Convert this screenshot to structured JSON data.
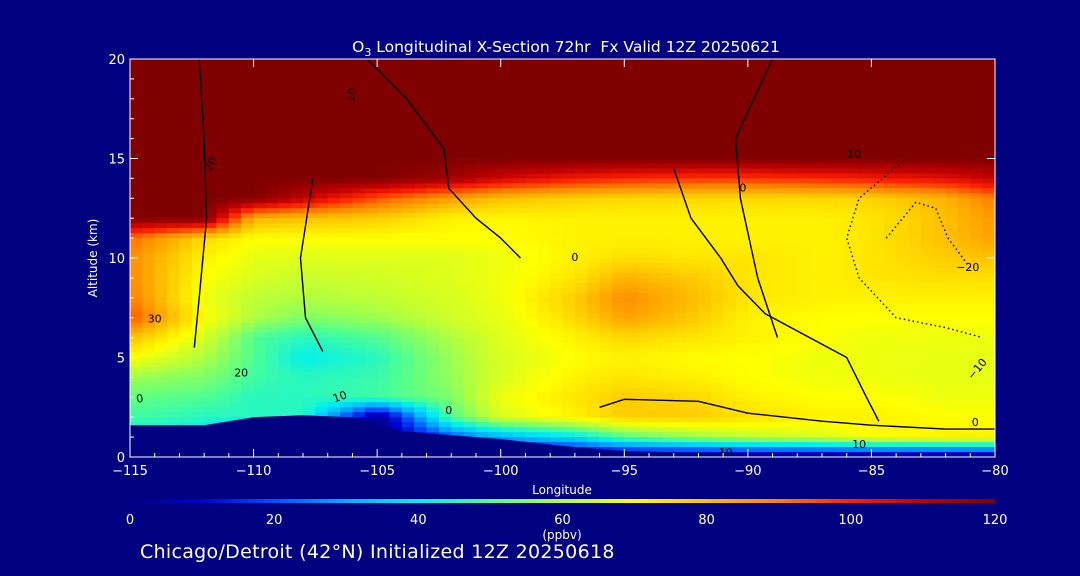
{
  "chart_data": {
    "type": "heatmap",
    "title": "O3 Longitudinal X-Section 72hr  Fx Valid 12Z 20250621",
    "title_parts": {
      "symbol": "O",
      "subscript": "3",
      "rest": " Longitudinal X-Section 72hr  Fx Valid 12Z 20250621"
    },
    "xlabel": "Longitude",
    "ylabel": "Altitude (km)",
    "xlim": [
      -115,
      -80
    ],
    "ylim": [
      0,
      20
    ],
    "x_ticks": [
      -115,
      -110,
      -105,
      -100,
      -95,
      -90,
      -85,
      -80
    ],
    "x_tick_labels": [
      "−115",
      "−110",
      "−105",
      "−100",
      "−95",
      "−90",
      "−85",
      "−80"
    ],
    "y_ticks": [
      0,
      5,
      10,
      15,
      20
    ],
    "y_tick_labels": [
      "0",
      "5",
      "10",
      "15",
      "20"
    ],
    "colorbar": {
      "label": "(ppbv)",
      "min": 0,
      "max": 120,
      "ticks": [
        0,
        20,
        40,
        60,
        80,
        100,
        120
      ],
      "tick_labels": [
        "0",
        "20",
        "40",
        "60",
        "80",
        "100",
        "120"
      ],
      "colors": [
        "#000080",
        "#0000d0",
        "#0050ff",
        "#00b0ff",
        "#00f0f0",
        "#50ff90",
        "#b0ff40",
        "#ffff00",
        "#ffc000",
        "#ff8000",
        "#ff2000",
        "#c00000",
        "#800000"
      ]
    },
    "field": {
      "lon": [
        -115,
        -112,
        -110,
        -108,
        -105,
        -102,
        -100,
        -97,
        -95,
        -92,
        -90,
        -87,
        -85,
        -82,
        -80
      ],
      "alt": [
        0,
        1,
        2,
        3,
        4,
        5,
        6,
        7,
        8,
        9,
        10,
        11,
        12,
        13,
        14,
        15,
        16,
        17,
        18,
        19,
        20
      ],
      "ppbv": [
        [
          0,
          0,
          0,
          0,
          0,
          0,
          0,
          0,
          0,
          0,
          0,
          0,
          0,
          0,
          0
        ],
        [
          40,
          38,
          0,
          0,
          0,
          20,
          30,
          38,
          50,
          58,
          62,
          65,
          70,
          72,
          72
        ],
        [
          48,
          45,
          45,
          45,
          0,
          50,
          65,
          72,
          78,
          78,
          75,
          72,
          72,
          70,
          70
        ],
        [
          52,
          50,
          45,
          45,
          48,
          55,
          68,
          74,
          78,
          76,
          72,
          70,
          70,
          68,
          68
        ],
        [
          58,
          55,
          48,
          45,
          47,
          57,
          65,
          72,
          74,
          72,
          70,
          68,
          68,
          67,
          67
        ],
        [
          70,
          60,
          50,
          40,
          45,
          58,
          65,
          70,
          72,
          70,
          70,
          68,
          68,
          67,
          67
        ],
        [
          80,
          65,
          50,
          45,
          50,
          60,
          66,
          72,
          76,
          74,
          72,
          70,
          68,
          68,
          68
        ],
        [
          95,
          70,
          60,
          55,
          58,
          64,
          67,
          76,
          85,
          78,
          72,
          70,
          70,
          70,
          70
        ],
        [
          90,
          68,
          62,
          60,
          62,
          65,
          68,
          78,
          88,
          80,
          74,
          72,
          72,
          72,
          72
        ],
        [
          88,
          70,
          65,
          63,
          64,
          66,
          68,
          74,
          82,
          78,
          74,
          72,
          74,
          75,
          75
        ],
        [
          88,
          72,
          67,
          66,
          66,
          66,
          68,
          72,
          75,
          74,
          74,
          72,
          74,
          78,
          80
        ],
        [
          92,
          76,
          70,
          70,
          70,
          70,
          70,
          72,
          72,
          72,
          72,
          72,
          74,
          80,
          85
        ],
        [
          120,
          120,
          82,
          80,
          78,
          72,
          71,
          72,
          72,
          72,
          72,
          72,
          74,
          80,
          86
        ],
        [
          120,
          120,
          120,
          110,
          95,
          85,
          80,
          77,
          76,
          76,
          76,
          76,
          77,
          82,
          90
        ],
        [
          120,
          120,
          120,
          120,
          120,
          115,
          108,
          102,
          100,
          98,
          98,
          100,
          102,
          105,
          110
        ],
        [
          120,
          120,
          120,
          120,
          120,
          120,
          120,
          120,
          120,
          120,
          120,
          120,
          120,
          120,
          120
        ],
        [
          120,
          120,
          120,
          120,
          120,
          120,
          120,
          120,
          120,
          120,
          120,
          120,
          120,
          120,
          120
        ],
        [
          120,
          120,
          120,
          120,
          120,
          120,
          120,
          120,
          120,
          120,
          120,
          120,
          120,
          120,
          120
        ],
        [
          120,
          120,
          120,
          120,
          120,
          120,
          120,
          120,
          120,
          120,
          120,
          120,
          120,
          120,
          120
        ],
        [
          120,
          120,
          120,
          120,
          120,
          120,
          120,
          120,
          120,
          120,
          120,
          120,
          120,
          120,
          120
        ],
        [
          120,
          120,
          120,
          120,
          120,
          120,
          120,
          120,
          120,
          120,
          120,
          120,
          120,
          120,
          120
        ]
      ]
    },
    "terrain": {
      "lon": [
        -115,
        -112,
        -110,
        -108,
        -106,
        -104,
        -102,
        -100,
        -97,
        -95,
        -92,
        -90,
        -87,
        -85,
        -80
      ],
      "alt": [
        1.6,
        1.6,
        2.0,
        2.1,
        2.0,
        1.3,
        1.1,
        0.9,
        0.5,
        0.3,
        0.2,
        0.1,
        0.1,
        0.05,
        0.05
      ]
    },
    "contours": [
      {
        "name": "north-south-zero-line",
        "style": "solid",
        "lon": [
          -105.4,
          -103.8,
          -102.3,
          -102.1,
          -101.0,
          -100.0,
          -99.2
        ],
        "alt": [
          20,
          18,
          15.5,
          13.5,
          12,
          11,
          10
        ]
      },
      {
        "name": "west-vertical-line",
        "style": "solid",
        "lon": [
          -112.2,
          -112.0,
          -111.9,
          -112.2,
          -112.4
        ],
        "alt": [
          20,
          16,
          12,
          8,
          5.5
        ]
      },
      {
        "name": "central-vertical-line",
        "style": "solid",
        "lon": [
          -107.6,
          -108.1,
          -107.9,
          -107.2
        ],
        "alt": [
          14,
          10,
          7,
          5.3
        ]
      },
      {
        "name": "eastern-zero-line",
        "style": "solid",
        "lon": [
          -89.0,
          -90.5,
          -90.3,
          -89.6,
          -88.8
        ],
        "alt": [
          20,
          16,
          13,
          9,
          6
        ]
      },
      {
        "name": "far-east-line",
        "style": "solid",
        "lon": [
          -93.0,
          -92.3,
          -91.1,
          -90.4,
          -89.3,
          -86.0,
          -85.2,
          -84.7
        ],
        "alt": [
          14.5,
          12,
          10,
          8.6,
          7.2,
          5,
          3,
          1.8
        ]
      },
      {
        "name": "dotted-negative-one",
        "style": "dotted",
        "lon": [
          -83.6,
          -85.5,
          -86.0,
          -85.5,
          -84.0,
          -82.0,
          -80.5
        ],
        "alt": [
          15,
          13,
          11,
          9,
          7,
          6.5,
          6
        ]
      },
      {
        "name": "dotted-negative-two",
        "style": "dotted",
        "lon": [
          -84.4,
          -83.2,
          -82.4,
          -81.9,
          -81.0
        ],
        "alt": [
          11,
          12.8,
          12.5,
          11,
          9.5
        ]
      },
      {
        "name": "lower-east-contour",
        "style": "solid",
        "lon": [
          -96.0,
          -95.0,
          -92.0,
          -90.0,
          -87.0,
          -85.0,
          -82.0,
          -80.0
        ],
        "alt": [
          2.5,
          2.9,
          2.8,
          2.2,
          1.8,
          1.6,
          1.4,
          1.4
        ]
      }
    ],
    "contour_labels": [
      {
        "text": "10",
        "lon": -106.0,
        "alt": 18.2,
        "rotate": -80
      },
      {
        "text": "20",
        "lon": -111.7,
        "alt": 14.7,
        "rotate": -60
      },
      {
        "text": "0",
        "lon": -90.2,
        "alt": 13.5,
        "rotate": 0
      },
      {
        "text": "0",
        "lon": -97.0,
        "alt": 10.0,
        "rotate": 0
      },
      {
        "text": "10",
        "lon": -85.7,
        "alt": 15.2,
        "rotate": 0
      },
      {
        "text": "−20",
        "lon": -81.1,
        "alt": 9.5,
        "rotate": 0
      },
      {
        "text": "−10",
        "lon": -80.7,
        "alt": 4.4,
        "rotate": -50
      },
      {
        "text": "0",
        "lon": -80.8,
        "alt": 1.7,
        "rotate": 0
      },
      {
        "text": "30",
        "lon": -114.0,
        "alt": 6.9,
        "rotate": 0
      },
      {
        "text": "20",
        "lon": -110.5,
        "alt": 4.2,
        "rotate": 0
      },
      {
        "text": "10",
        "lon": -106.5,
        "alt": 3.0,
        "rotate": -20
      },
      {
        "text": "0",
        "lon": -114.6,
        "alt": 2.9,
        "rotate": -10
      },
      {
        "text": "0",
        "lon": -102.1,
        "alt": 2.3,
        "rotate": 0
      },
      {
        "text": "10",
        "lon": -85.5,
        "alt": 0.6,
        "rotate": 0
      },
      {
        "text": "10",
        "lon": -90.9,
        "alt": 0.2,
        "rotate": 0
      }
    ]
  },
  "footer": {
    "text": "Chicago/Detroit (42°N) Initialized 12Z 20250618"
  }
}
